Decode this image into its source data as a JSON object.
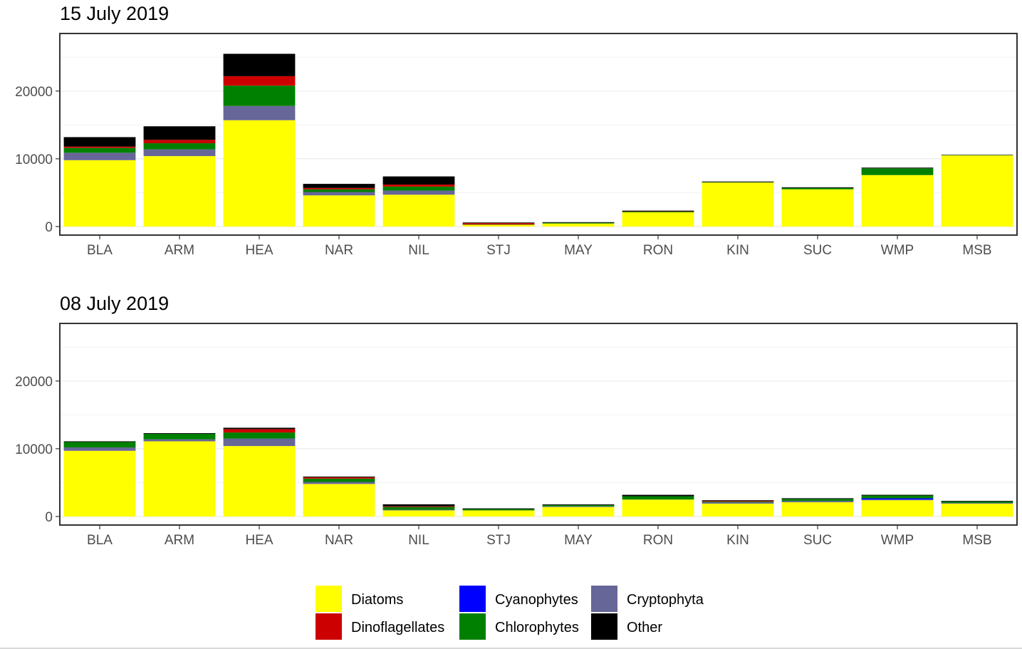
{
  "colors": {
    "Diatoms": "#ffff00",
    "Dinoflagellates": "#cc0000",
    "Cyanophytes": "#0000ff",
    "Chlorophytes": "#008000",
    "Cryptophyta": "#666699",
    "Other": "#000000"
  },
  "legend": {
    "items": [
      "Diatoms",
      "Dinoflagellates",
      "Cyanophytes",
      "Chlorophytes",
      "Cryptophyta",
      "Other"
    ]
  },
  "chart_data": [
    {
      "type": "bar",
      "stacked": true,
      "title": "15 July 2019",
      "xlabel": "",
      "ylabel": "",
      "ylim": [
        0,
        28500
      ],
      "yticks": [
        0,
        10000,
        20000
      ],
      "grid": true,
      "legend_position": "bottom",
      "categories": [
        "BLA",
        "ARM",
        "HEA",
        "NAR",
        "NIL",
        "STJ",
        "MAY",
        "RON",
        "KIN",
        "SUC",
        "WMP",
        "MSB"
      ],
      "series": [
        {
          "name": "Diatoms",
          "values": [
            9800,
            10400,
            15700,
            4600,
            4700,
            250,
            450,
            2100,
            6500,
            5500,
            7600,
            10500
          ]
        },
        {
          "name": "Cryptophyta",
          "values": [
            1100,
            1000,
            2100,
            500,
            600,
            0,
            0,
            0,
            0,
            0,
            0,
            0
          ]
        },
        {
          "name": "Cyanophytes",
          "values": [
            0,
            0,
            0,
            0,
            0,
            0,
            0,
            0,
            0,
            0,
            0,
            0
          ]
        },
        {
          "name": "Chlorophytes",
          "values": [
            700,
            900,
            3000,
            400,
            600,
            50,
            100,
            100,
            50,
            200,
            1000,
            50
          ]
        },
        {
          "name": "Dinoflagellates",
          "values": [
            200,
            500,
            1400,
            200,
            300,
            200,
            0,
            50,
            0,
            0,
            0,
            0
          ]
        },
        {
          "name": "Other",
          "values": [
            1400,
            2000,
            3300,
            600,
            1200,
            100,
            100,
            100,
            100,
            100,
            100,
            50
          ]
        }
      ]
    },
    {
      "type": "bar",
      "stacked": true,
      "title": "08 July 2019",
      "xlabel": "",
      "ylabel": "",
      "ylim": [
        0,
        28500
      ],
      "yticks": [
        0,
        10000,
        20000
      ],
      "grid": true,
      "legend_position": "bottom",
      "categories": [
        "BLA",
        "ARM",
        "HEA",
        "NAR",
        "NIL",
        "STJ",
        "MAY",
        "RON",
        "KIN",
        "SUC",
        "WMP",
        "MSB"
      ],
      "series": [
        {
          "name": "Diatoms",
          "values": [
            9700,
            11100,
            10400,
            4800,
            900,
            900,
            1400,
            2500,
            1900,
            2100,
            2400,
            1900
          ]
        },
        {
          "name": "Cryptophyta",
          "values": [
            500,
            300,
            1100,
            300,
            100,
            0,
            100,
            0,
            200,
            200,
            100,
            100
          ]
        },
        {
          "name": "Cyanophytes",
          "values": [
            0,
            0,
            0,
            0,
            0,
            0,
            0,
            0,
            0,
            0,
            200,
            0
          ]
        },
        {
          "name": "Chlorophytes",
          "values": [
            800,
            800,
            900,
            500,
            400,
            200,
            200,
            500,
            100,
            300,
            400,
            200
          ]
        },
        {
          "name": "Dinoflagellates",
          "values": [
            0,
            0,
            500,
            200,
            100,
            0,
            0,
            0,
            100,
            0,
            0,
            0
          ]
        },
        {
          "name": "Other",
          "values": [
            100,
            100,
            200,
            100,
            300,
            100,
            100,
            200,
            100,
            100,
            100,
            100
          ]
        }
      ]
    }
  ]
}
